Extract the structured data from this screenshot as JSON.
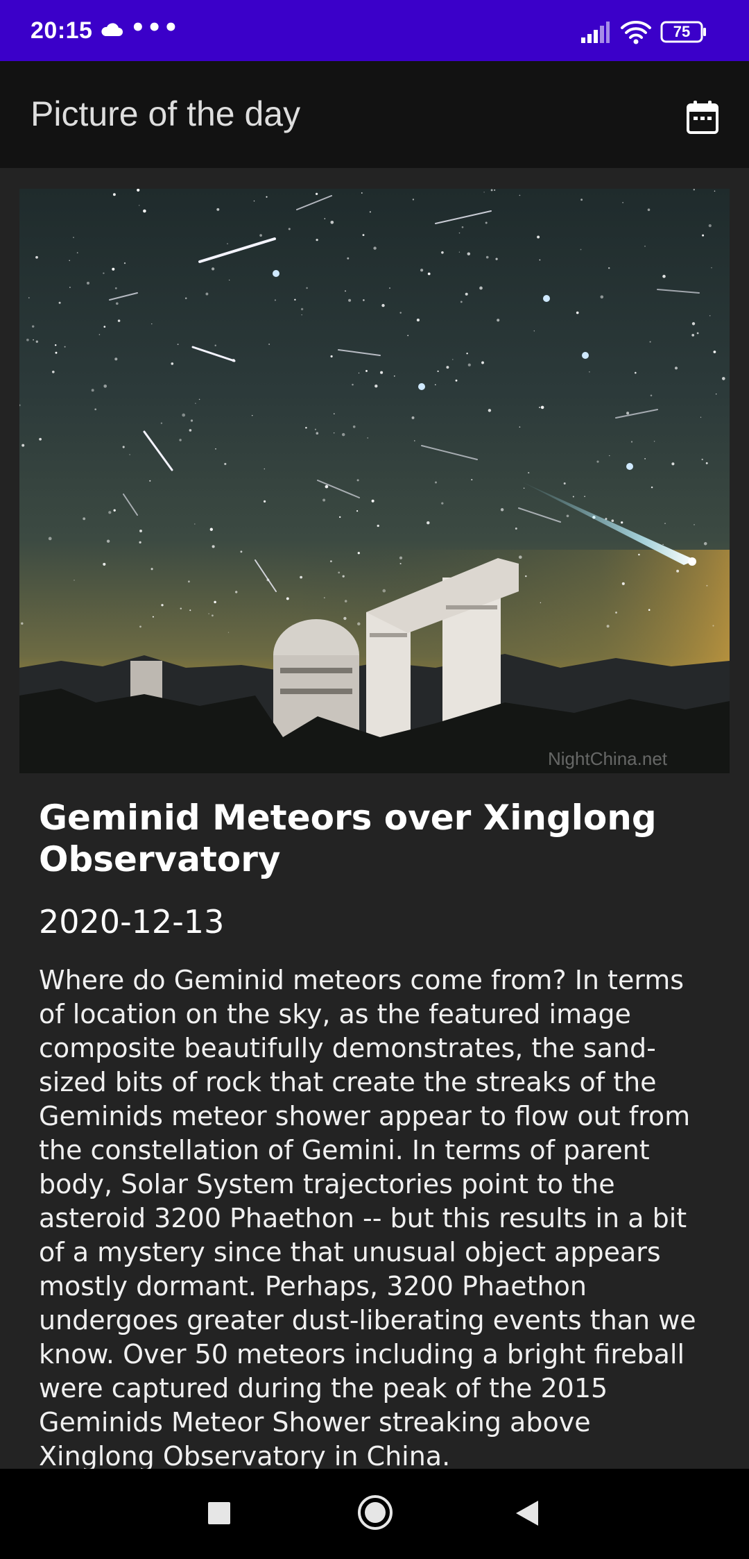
{
  "status_bar": {
    "time": "20:15",
    "overflow_dots": "•••",
    "battery_level": "75",
    "icons": [
      "cloud-icon",
      "signal-icon",
      "wifi-icon",
      "battery-icon"
    ]
  },
  "app_bar": {
    "title": "Picture of the day",
    "action_icon": "calendar-icon"
  },
  "apod": {
    "image_watermark": "NightChina.net",
    "title": "Geminid Meteors over Xinglong Observatory",
    "date": "2020-12-13",
    "explanation": "Where do Geminid meteors come from?  In terms of location on the sky, as the featured image composite beautifully demonstrates, the sand-sized bits of rock that create the streaks of the Geminids meteor shower appear to flow out from the constellation of Gemini. In terms of parent body, Solar System trajectories point to the asteroid 3200 Phaethon -- but this results in a bit of a mystery since that unusual object appears mostly dormant.  Perhaps, 3200 Phaethon undergoes greater dust-liberating events than we know. Over 50 meteors including a bright fireball were captured during the peak of the 2015 Geminids Meteor Shower streaking above Xinglong Observatory in China."
  },
  "nav_bar": {
    "icons": [
      "recents-icon",
      "home-icon",
      "back-icon"
    ]
  },
  "colors": {
    "status_bar": "#3b00c9",
    "app_bar": "#121212",
    "background": "#232323",
    "nav_bar": "#000000"
  }
}
